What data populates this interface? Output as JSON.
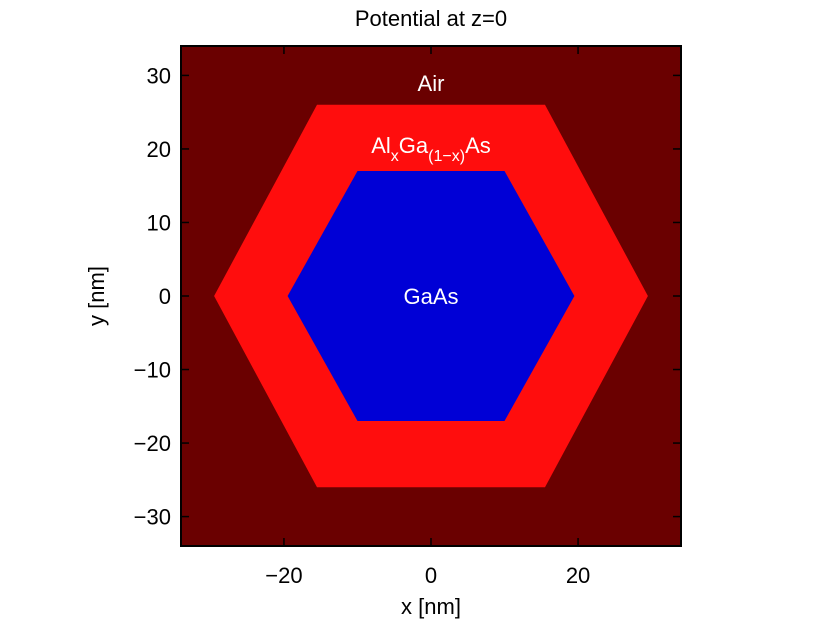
{
  "chart_data": {
    "type": "heatmap",
    "title": "Potential at  z=0",
    "xlabel": "x [nm]",
    "ylabel": "y [nm]",
    "xlim": [
      -34,
      34
    ],
    "ylim": [
      -34,
      34
    ],
    "xticks": [
      -20,
      0,
      20
    ],
    "xtick_labels": [
      "−20",
      "0",
      "20"
    ],
    "yticks": [
      30,
      20,
      10,
      0,
      -10,
      -20,
      -30
    ],
    "ytick_labels": [
      "30",
      "20",
      "10",
      "0",
      "−10",
      "−20",
      "−30"
    ],
    "grid": false,
    "regions": [
      {
        "name": "Air",
        "color": "#6a0000",
        "shape": "background",
        "label_at": [
          0,
          29
        ]
      },
      {
        "name": "AlGaAs shell",
        "color": "#ff0d0d",
        "shape": "hexagon",
        "vertices": [
          [
            -29.5,
            0
          ],
          [
            -15.5,
            26
          ],
          [
            15.5,
            26
          ],
          [
            29.5,
            0
          ],
          [
            15.5,
            -26
          ],
          [
            -15.5,
            -26
          ]
        ],
        "label_parts": {
          "main1": "Al",
          "sub1": "x",
          "main2": "Ga",
          "sub2": "(1−x)",
          "main3": "As"
        },
        "label_at": [
          0,
          20
        ]
      },
      {
        "name": "GaAs",
        "color": "#0000d6",
        "shape": "hexagon",
        "vertices": [
          [
            -19.5,
            0
          ],
          [
            -10,
            17
          ],
          [
            10,
            17
          ],
          [
            19.5,
            0
          ],
          [
            10,
            -17
          ],
          [
            -10,
            -17
          ]
        ],
        "label_at": [
          0,
          0
        ]
      }
    ],
    "labels": {
      "air": "Air",
      "gaas": "GaAs",
      "algaas_main1": "Al",
      "algaas_sub1": "x",
      "algaas_main2": "Ga",
      "algaas_sub2": "(1−x)",
      "algaas_main3": "As"
    }
  }
}
